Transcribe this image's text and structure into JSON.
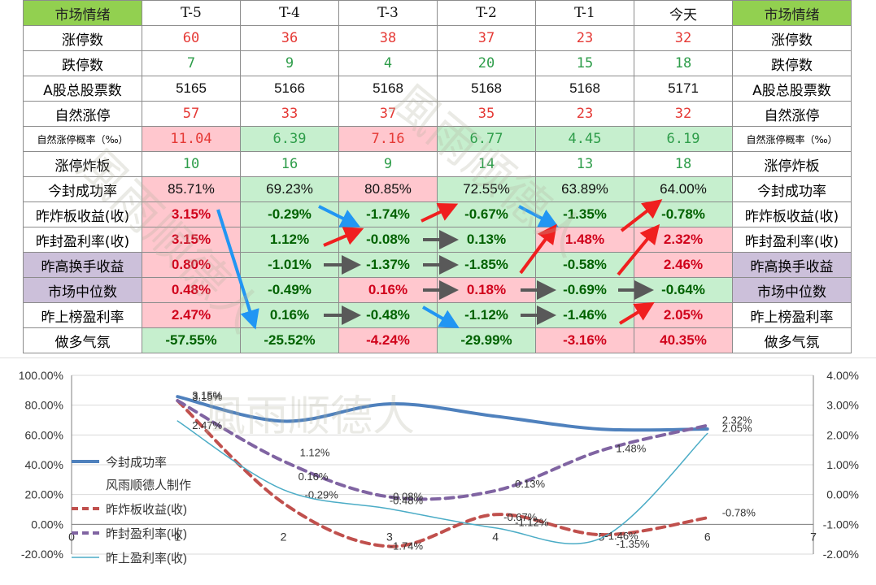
{
  "table": {
    "header_left": "市场情绪",
    "header_right": "市场情绪",
    "columns": [
      "T-5",
      "T-4",
      "T-3",
      "T-2",
      "T-1",
      "今天"
    ],
    "rows": [
      {
        "label": "涨停数",
        "label_small": false,
        "label_bg": "",
        "font": "mono",
        "values": [
          "60",
          "36",
          "38",
          "37",
          "23",
          "32"
        ],
        "colors": [
          "red",
          "red",
          "red",
          "red",
          "red",
          "red"
        ],
        "bgs": [
          "",
          "",
          "",
          "",
          "",
          ""
        ]
      },
      {
        "label": "跌停数",
        "label_small": false,
        "label_bg": "",
        "font": "mono",
        "values": [
          "7",
          "9",
          "4",
          "20",
          "15",
          "18"
        ],
        "colors": [
          "green",
          "green",
          "green",
          "green",
          "green",
          "green"
        ],
        "bgs": [
          "",
          "",
          "",
          "",
          "",
          ""
        ]
      },
      {
        "label": "A股总股票数",
        "label_small": false,
        "label_bg": "",
        "font": "plain",
        "values": [
          "5165",
          "5166",
          "5168",
          "5168",
          "5168",
          "5171"
        ],
        "colors": [
          "",
          "",
          "",
          "",
          "",
          ""
        ],
        "bgs": [
          "",
          "",
          "",
          "",
          "",
          ""
        ]
      },
      {
        "label": "自然涨停",
        "label_small": false,
        "label_bg": "",
        "font": "mono",
        "values": [
          "57",
          "33",
          "37",
          "35",
          "23",
          "32"
        ],
        "colors": [
          "red",
          "red",
          "red",
          "red",
          "red",
          "red"
        ],
        "bgs": [
          "",
          "",
          "",
          "",
          "",
          ""
        ]
      },
      {
        "label": "自然涨停概率（‰）",
        "label_small": true,
        "label_bg": "",
        "font": "mono",
        "values": [
          "11.04",
          "6.39",
          "7.16",
          "6.77",
          "4.45",
          "6.19"
        ],
        "colors": [
          "red",
          "green",
          "red",
          "green",
          "green",
          "green"
        ],
        "bgs": [
          "r",
          "g",
          "r",
          "g",
          "g",
          "g"
        ]
      },
      {
        "label": "涨停炸板",
        "label_small": false,
        "label_bg": "",
        "font": "mono",
        "values": [
          "10",
          "16",
          "9",
          "14",
          "13",
          "18"
        ],
        "colors": [
          "green",
          "green",
          "green",
          "green",
          "green",
          "green"
        ],
        "bgs": [
          "",
          "",
          "",
          "",
          "",
          ""
        ]
      },
      {
        "label": "今封成功率",
        "label_small": false,
        "label_bg": "",
        "font": "plain",
        "values": [
          "85.71%",
          "69.23%",
          "80.85%",
          "72.55%",
          "63.89%",
          "64.00%"
        ],
        "colors": [
          "dred",
          "dgreen",
          "dred",
          "dgreen",
          "dgreen",
          "dgreen"
        ],
        "bgs": [
          "r",
          "g",
          "r",
          "g",
          "g",
          "g"
        ]
      },
      {
        "label": "昨炸板收益(收)",
        "label_small": false,
        "label_bg": "",
        "font": "b",
        "values": [
          "3.15%",
          "-0.29%",
          "-1.74%",
          "-0.67%",
          "-1.35%",
          "-0.78%"
        ],
        "colors": [
          "dred",
          "dgreen",
          "dgreen",
          "dgreen",
          "dgreen",
          "dgreen"
        ],
        "bgs": [
          "r",
          "g",
          "g",
          "g",
          "g",
          "g"
        ]
      },
      {
        "label": "昨封盈利率(收)",
        "label_small": false,
        "label_bg": "",
        "font": "b",
        "values": [
          "3.15%",
          "1.12%",
          "-0.08%",
          "0.13%",
          "1.48%",
          "2.32%"
        ],
        "colors": [
          "dred",
          "dgreen",
          "dgreen",
          "dgreen",
          "dred",
          "dred"
        ],
        "bgs": [
          "r",
          "g",
          "g",
          "g",
          "r",
          "r"
        ]
      },
      {
        "label": "昨高换手收益",
        "label_small": false,
        "label_bg": "p",
        "font": "b",
        "values": [
          "0.80%",
          "-1.01%",
          "-1.37%",
          "-1.85%",
          "-0.58%",
          "2.46%"
        ],
        "colors": [
          "dred",
          "dgreen",
          "dgreen",
          "dgreen",
          "dgreen",
          "dred"
        ],
        "bgs": [
          "r",
          "g",
          "g",
          "g",
          "g",
          "r"
        ]
      },
      {
        "label": "市场中位数",
        "label_small": false,
        "label_bg": "p",
        "font": "b",
        "values": [
          "0.48%",
          "-0.49%",
          "0.16%",
          "0.18%",
          "-0.69%",
          "-0.64%"
        ],
        "colors": [
          "dred",
          "dgreen",
          "dred",
          "dred",
          "dgreen",
          "dgreen"
        ],
        "bgs": [
          "r",
          "g",
          "r",
          "r",
          "g",
          "g"
        ]
      },
      {
        "label": "昨上榜盈利率",
        "label_small": false,
        "label_bg": "",
        "font": "b",
        "values": [
          "2.47%",
          "0.16%",
          "-0.48%",
          "-1.12%",
          "-1.46%",
          "2.05%"
        ],
        "colors": [
          "dred",
          "dgreen",
          "dgreen",
          "dgreen",
          "dgreen",
          "dred"
        ],
        "bgs": [
          "r",
          "g",
          "g",
          "g",
          "g",
          "r"
        ]
      },
      {
        "label": "做多气氛",
        "label_small": false,
        "label_bg": "",
        "font": "b",
        "values": [
          "-57.55%",
          "-25.52%",
          "-4.24%",
          "-29.99%",
          "-3.16%",
          "40.35%"
        ],
        "colors": [
          "dgreen",
          "dgreen",
          "dred",
          "dgreen",
          "dred",
          "dred"
        ],
        "bgs": [
          "g",
          "g",
          "r",
          "g",
          "r",
          "r"
        ]
      }
    ]
  },
  "watermark": "風雨顺德人",
  "colors": {
    "red": "#e53935",
    "green": "#2e9d4a",
    "pink": "#ffc7ce",
    "light_green": "#c6efce",
    "purple": "#ccc0da",
    "header_green": "#92d050",
    "blue_arrow": "#2196f3",
    "red_arrow": "#f01f1f",
    "gray_arrow": "#595959"
  },
  "chart_data": {
    "type": "line",
    "x": [
      1,
      2,
      3,
      4,
      5,
      6
    ],
    "xlim": [
      0,
      7
    ],
    "x_ticks": [
      "0",
      "1",
      "2",
      "3",
      "4",
      "5",
      "6",
      "7"
    ],
    "y_left": {
      "ylim": [
        -20,
        100
      ],
      "ticks": [
        "100.00%",
        "80.00%",
        "60.00%",
        "40.00%",
        "20.00%",
        "0.00%",
        "-20.00%"
      ]
    },
    "y_right": {
      "ylim": [
        -2,
        4
      ],
      "ticks": [
        "4.00%",
        "3.00%",
        "2.00%",
        "1.00%",
        "0.00%",
        "-1.00%",
        "-2.00%"
      ]
    },
    "series": [
      {
        "name": "今封成功率",
        "axis": "left",
        "style": "solid",
        "color": "#4f81bd",
        "width": 4,
        "values": [
          85.71,
          69.23,
          80.85,
          72.55,
          63.89,
          64.0
        ],
        "labels": [
          "",
          "",
          "",
          "",
          "",
          ""
        ]
      },
      {
        "name": "昨炸板收益(收)",
        "axis": "right",
        "style": "dash",
        "color": "#c0504d",
        "width": 4,
        "values": [
          3.15,
          -0.29,
          -1.74,
          -0.67,
          -1.35,
          -0.78
        ],
        "labels": [
          "3.15%",
          "-0.29%",
          "-1.74%",
          "-0.67%",
          "-1.35%",
          "-0.78%"
        ]
      },
      {
        "name": "昨封盈利率(收)",
        "axis": "right",
        "style": "dash",
        "color": "#8064a2",
        "width": 4,
        "values": [
          3.15,
          1.12,
          -0.08,
          0.13,
          1.48,
          2.32
        ],
        "labels": [
          "3.15%",
          "1.12%",
          "-0.08%",
          "0.13%",
          "1.48%",
          "2.32%"
        ]
      },
      {
        "name": "昨上盈利率(收)",
        "axis": "right",
        "style": "solid",
        "color": "#4bacc6",
        "width": 1.5,
        "values": [
          2.47,
          0.16,
          -0.48,
          -1.12,
          -1.46,
          2.05
        ],
        "labels": [
          "2.47%",
          "0.16%",
          "-0.48%",
          "-1.12%",
          "-1.46%",
          "2.05%"
        ]
      }
    ],
    "legend_note": "风雨顺德人制作",
    "legend_position": "left-inside"
  }
}
